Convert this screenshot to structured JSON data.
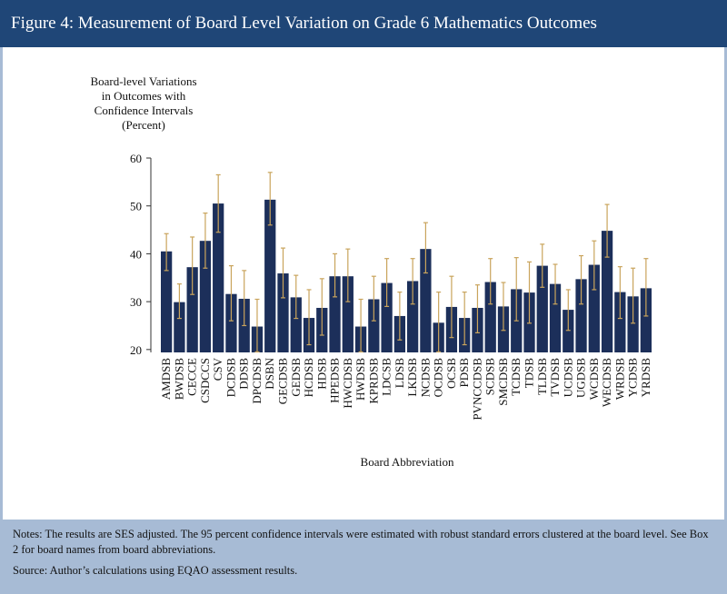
{
  "chart_data": {
    "type": "bar",
    "title": "Figure 4: Measurement of Board Level Variation on Grade 6 Mathematics Outcomes",
    "ylabel": [
      "Board-level Variations",
      "in Outcomes with",
      "Confidence Intervals",
      "(Percent)"
    ],
    "xlabel": "Board Abbreviation",
    "categories": [
      "AMDSB",
      "BWDSB",
      "CECCE",
      "CSDCCS",
      "CSV",
      "DCDSB",
      "DDSB",
      "DPCDSB",
      "DSBN",
      "GECDSB",
      "GEDSB",
      "HCDSB",
      "HDSB",
      "HPEDSB",
      "HWCDSB",
      "HWDSB",
      "KPRDSB",
      "LDCSB",
      "LDSB",
      "LKDSB",
      "NCDSB",
      "OCDSB",
      "OCSB",
      "PDSB",
      "PVNCCDSB",
      "SCDSB",
      "SMCDSB",
      "TCDSB",
      "TDSB",
      "TLDSB",
      "TVDSB",
      "UCDSB",
      "UGDSB",
      "WCDSB",
      "WECDSB",
      "WRDSB",
      "YCDSB",
      "YRDSB"
    ],
    "values": [
      40.5,
      29.9,
      37.2,
      42.7,
      50.5,
      31.6,
      30.6,
      24.8,
      51.3,
      35.9,
      30.9,
      26.6,
      28.7,
      35.3,
      35.3,
      24.8,
      30.5,
      33.9,
      27,
      34.3,
      41,
      25.6,
      28.9,
      26.6,
      28.7,
      34.1,
      29,
      32.6,
      31.9,
      37.5,
      33.7,
      28.3,
      34.7,
      37.7,
      44.8,
      32,
      31.1,
      32.8
    ],
    "lower": [
      36.5,
      26.5,
      31.5,
      37,
      44.5,
      26,
      25,
      19.5,
      46,
      30.8,
      26.5,
      21,
      23,
      31,
      30,
      19.5,
      26,
      29,
      22,
      29.5,
      36,
      19.5,
      22.5,
      21,
      23.5,
      29.5,
      24,
      26,
      25.5,
      33,
      29.5,
      24,
      29.5,
      32.5,
      39.3,
      26.5,
      25.5,
      27
    ],
    "upper": [
      44.2,
      33.7,
      43.5,
      48.5,
      56.5,
      37.5,
      36.5,
      30.5,
      57,
      41.2,
      35.5,
      32.5,
      34.8,
      40,
      41,
      30.5,
      35.3,
      39,
      32,
      39,
      46.5,
      32,
      35.3,
      32,
      33.5,
      39,
      34,
      39.2,
      38.3,
      42,
      37.8,
      32.5,
      39.6,
      42.7,
      50.3,
      37.3,
      37,
      39
    ],
    "color": "#1c2f5a",
    "error_color": "#c9a45c",
    "ylim": [
      19.4,
      60
    ],
    "yticks": [
      20,
      30,
      40,
      50,
      60
    ]
  },
  "notes": [
    "Notes: The results are SES adjusted. The 95 percent confidence intervals were estimated with robust standard errors clustered at the board level. See Box 2 for board names from board abbreviations.",
    "Source: Author’s calculations using EQAO assessment results."
  ]
}
